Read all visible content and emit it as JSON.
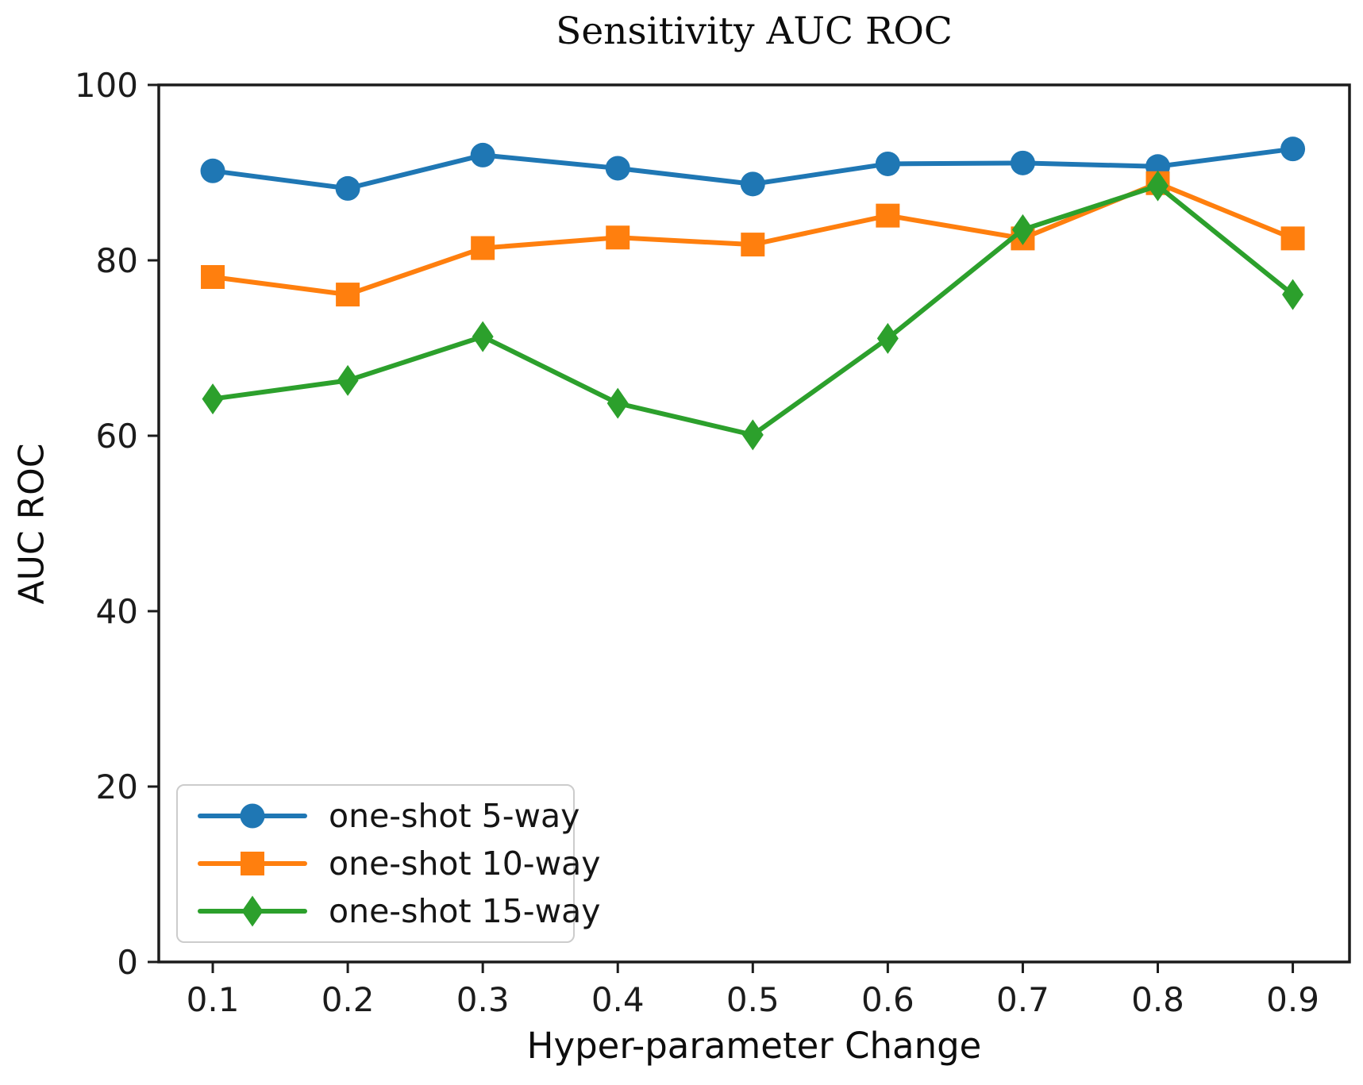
{
  "chart_data": {
    "type": "line",
    "title": "Sensitivity AUC ROC",
    "xlabel": "Hyper-parameter Change",
    "ylabel": "AUC ROC",
    "x": [
      0.1,
      0.2,
      0.3,
      0.4,
      0.5,
      0.6,
      0.7,
      0.8,
      0.9
    ],
    "x_tick_labels": [
      "0.1",
      "0.2",
      "0.3",
      "0.4",
      "0.5",
      "0.6",
      "0.7",
      "0.8",
      "0.9"
    ],
    "y_ticks": [
      0,
      20,
      40,
      60,
      80,
      100
    ],
    "y_tick_labels": [
      "0",
      "20",
      "40",
      "60",
      "80",
      "100"
    ],
    "xlim": [
      0.06,
      0.942
    ],
    "ylim": [
      0,
      100
    ],
    "grid": false,
    "legend_position": "lower left",
    "axis_color": "#1c1c1c",
    "series": [
      {
        "name": "one-shot 5-way",
        "color": "#1f77b4",
        "marker": "circle",
        "values": [
          90.2,
          88.2,
          92.0,
          90.5,
          88.7,
          91.0,
          91.1,
          90.7,
          92.7
        ]
      },
      {
        "name": "one-shot 10-way",
        "color": "#ff7f0e",
        "marker": "square",
        "values": [
          78.1,
          76.1,
          81.4,
          82.6,
          81.8,
          85.1,
          82.5,
          88.8,
          82.5
        ]
      },
      {
        "name": "one-shot 15-way",
        "color": "#2ca02c",
        "marker": "diamond",
        "values": [
          64.2,
          66.3,
          71.3,
          63.7,
          60.1,
          71.1,
          83.5,
          88.5,
          76.1
        ]
      }
    ]
  }
}
